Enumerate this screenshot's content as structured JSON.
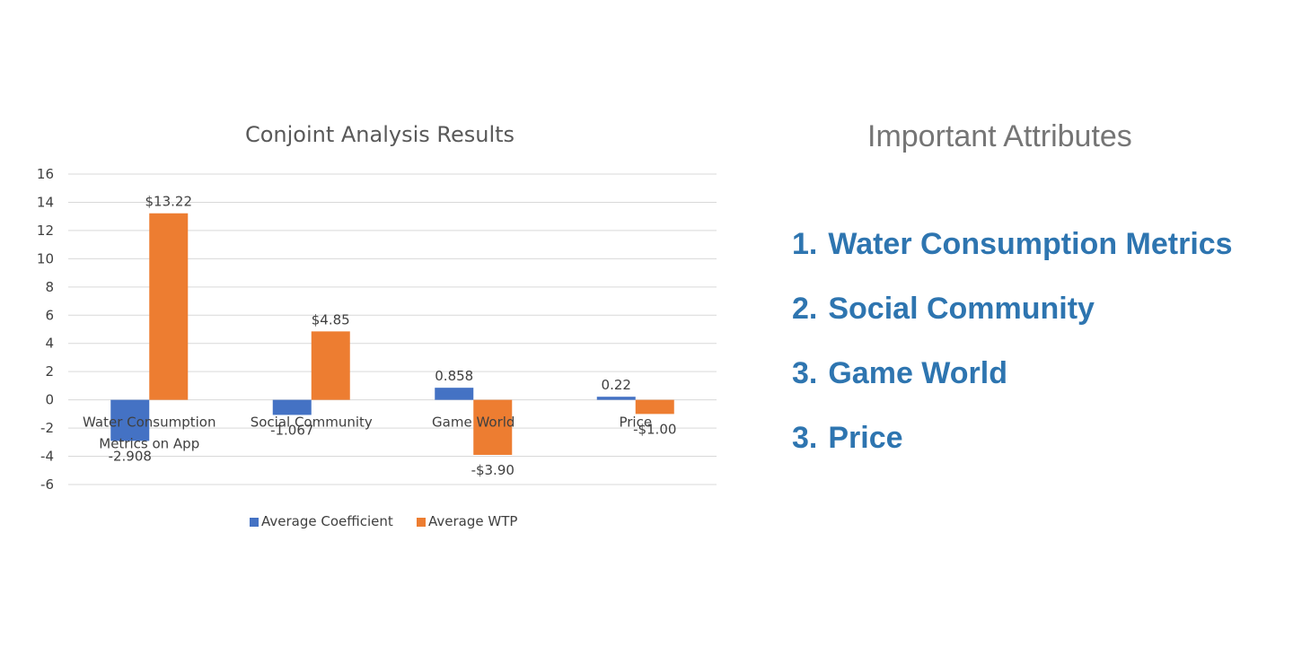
{
  "chart_data": {
    "type": "bar",
    "title": "Conjoint Analysis Results",
    "categories": [
      "Water Consumption\nMetrics on App",
      "Social Community",
      "Game World",
      "Price"
    ],
    "series": [
      {
        "name": "Average Coefficient",
        "color": "#4472c4",
        "values": [
          -2.908,
          -1.067,
          0.858,
          0.22
        ],
        "labels": [
          "-2.908",
          "-1.067",
          "0.858",
          "0.22"
        ]
      },
      {
        "name": "Average WTP",
        "color": "#ed7d31",
        "values": [
          13.22,
          4.85,
          -3.9,
          -1.0
        ],
        "labels": [
          "$13.22",
          "$4.85",
          "-$3.90",
          "-$1.00"
        ]
      }
    ],
    "ylim": [
      -6,
      16
    ],
    "yticks": [
      16,
      14,
      12,
      10,
      8,
      6,
      4,
      2,
      0,
      -2,
      -4,
      -6
    ],
    "grid": true,
    "legend": "bottom"
  },
  "side_panel": {
    "title": "Important Attributes",
    "items": [
      {
        "num": "1.",
        "label": "Water Consumption Metrics"
      },
      {
        "num": "2.",
        "label": "Social Community"
      },
      {
        "num": "3.",
        "label": "Game World"
      },
      {
        "num": "3.",
        "label": "Price"
      }
    ]
  }
}
